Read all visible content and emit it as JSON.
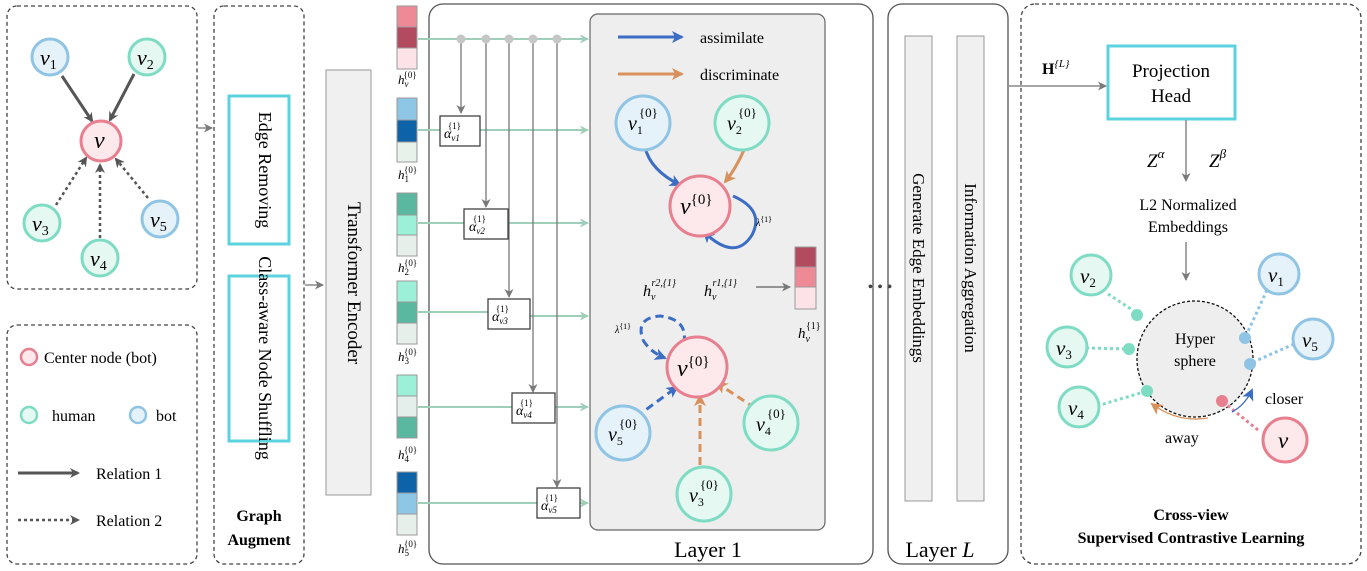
{
  "input_graph": {
    "nodes": {
      "v1": "v",
      "v1_sub": "1",
      "v2": "v",
      "v2_sub": "2",
      "center": "v",
      "v3": "v",
      "v3_sub": "3",
      "v4": "v",
      "v4_sub": "4",
      "v5": "v",
      "v5_sub": "5"
    }
  },
  "legend": {
    "center_node": "Center node (bot)",
    "human": "human",
    "bot": "bot",
    "relation1": "Relation 1",
    "relation2": "Relation 2"
  },
  "graph_augment": {
    "title_line1": "Graph",
    "title_line2": "Augment",
    "edge_removing": "Edge Removing",
    "node_shuffling": "Class-aware Node Shuffling"
  },
  "transformer_encoder": "Transformer Encoder",
  "features": {
    "labels": [
      "h",
      "h",
      "h",
      "h",
      "h",
      "h"
    ],
    "subs": [
      "v",
      "1",
      "2",
      "3",
      "4",
      "5"
    ],
    "sup": "{0}"
  },
  "attention": {
    "alpha": "α",
    "subs": [
      "v1",
      "v2",
      "v3",
      "v4",
      "v5"
    ],
    "sup": "{1}"
  },
  "layer1": {
    "title": "Layer 1",
    "assimilate": "assimilate",
    "discriminate": "discriminate",
    "lambda": "λ",
    "lambda_sup": "{1}",
    "node_sup": "{0}",
    "h_r2": "h",
    "h_r2_sup": "r2,{1}",
    "h_r1": "h",
    "h_r1_sup": "r1,{1}",
    "h_out": "h",
    "h_out_sup": "{1}",
    "v_sub": "v"
  },
  "ellipsis": "• • •",
  "layerL": {
    "title": "Layer ",
    "title_var": "L",
    "generate_edge": "Generate Edge Embeddings",
    "info_agg": "Information Aggregation"
  },
  "contrastive": {
    "h_label": "H",
    "h_sup": "{L}",
    "projection_line1": "Projection",
    "projection_line2": "Head",
    "z_alpha": "Z",
    "z_alpha_sup": "α",
    "z_beta": "Z",
    "z_beta_sup": "β",
    "l2_line1": "L2 Normalized",
    "l2_line2": "Embeddings",
    "hyper_line1": "Hyper",
    "hyper_line2": "sphere",
    "closer": "closer",
    "away": "away",
    "title_line1": "Cross-view",
    "title_line2": "Supervised Contrastive Learning"
  },
  "colors": {
    "human_stroke": "#7fdcc4",
    "human_fill": "#e6f8f2",
    "bot_stroke": "#8fc4e4",
    "bot_fill": "#e6f2fa",
    "center_stroke": "#e87f8f",
    "center_fill": "#fde8ec",
    "assimilate": "#3b6dc4",
    "discriminate": "#d9915c",
    "cyan_box": "#5bd3de"
  }
}
